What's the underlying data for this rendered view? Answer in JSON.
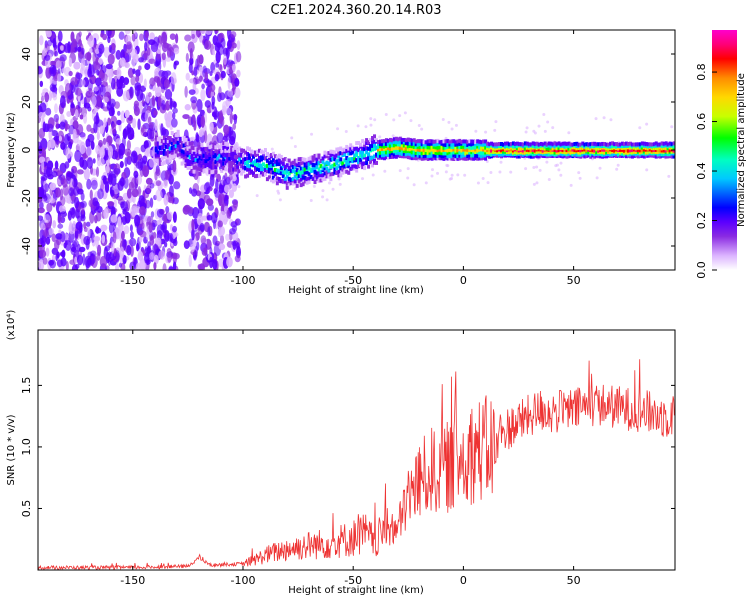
{
  "chart_data": [
    {
      "type": "heatmap",
      "title": "C2E1.2024.360.20.14.R03",
      "xlabel": "Height of straight line (km)",
      "ylabel": "Frequency (Hz)",
      "xlim": [
        -193,
        96
      ],
      "ylim": [
        -50,
        50
      ],
      "x_ticks": [
        -150,
        -100,
        -50,
        0,
        50
      ],
      "y_ticks": [
        -40,
        -20,
        0,
        20,
        40
      ],
      "grid": false,
      "colorbar": {
        "label": "Normalized spectral amplitude",
        "range": [
          0,
          0.97
        ],
        "ticks": [
          "0.0",
          "0.2",
          "0.4",
          "0.6",
          "0.8"
        ],
        "colormap": [
          "#ffffff",
          "#dcb4ff",
          "#8a2be2",
          "#5b00ff",
          "#0000ff",
          "#00c8ff",
          "#00ffc0",
          "#00ff00",
          "#c8ff00",
          "#ffd800",
          "#ff8c00",
          "#ff0000",
          "#ff0077",
          "#ff00cc"
        ]
      },
      "ridge": {
        "x": [
          -138,
          -130,
          -125,
          -120,
          -110,
          -100,
          -90,
          -80,
          -70,
          -60,
          -50,
          -40,
          -30,
          -20,
          -10,
          0,
          20,
          50,
          96
        ],
        "y": [
          0,
          2,
          -3,
          -4,
          -3,
          -5,
          -6,
          -10,
          -8,
          -6,
          -3,
          0,
          1,
          0,
          0,
          0,
          0,
          0,
          0
        ]
      },
      "noise_region_x": [
        -193,
        -102
      ]
    },
    {
      "type": "line",
      "title": "",
      "xlabel": "Height of straight line (km)",
      "ylabel": "SNR (10 * v/v)",
      "multiplier_label": "(x10⁴)",
      "xlim": [
        -193,
        96
      ],
      "ylim": [
        0,
        1.95
      ],
      "x_ticks": [
        -150,
        -100,
        -50,
        0,
        50
      ],
      "y_ticks": [
        "0.5",
        "1.0",
        "1.5"
      ],
      "grid": false,
      "series": [
        {
          "color": "#ee3333",
          "x": [
            -193,
            -150,
            -125,
            -120,
            -115,
            -100,
            -95,
            -90,
            -80,
            -70,
            -60,
            -50,
            -45,
            -40,
            -35,
            -30,
            -25,
            -20,
            -15,
            -10,
            -5,
            0,
            5,
            10,
            15,
            20,
            25,
            30,
            35,
            40,
            50,
            60,
            70,
            80,
            90,
            96
          ],
          "y": [
            0.02,
            0.02,
            0.03,
            0.1,
            0.04,
            0.05,
            0.08,
            0.12,
            0.17,
            0.2,
            0.22,
            0.26,
            0.3,
            0.22,
            0.35,
            0.32,
            0.6,
            0.72,
            0.8,
            0.82,
            0.85,
            0.93,
            0.97,
            0.98,
            1.0,
            1.15,
            1.2,
            1.25,
            1.3,
            1.28,
            1.3,
            1.35,
            1.32,
            1.3,
            1.25,
            1.25
          ]
        }
      ]
    }
  ]
}
